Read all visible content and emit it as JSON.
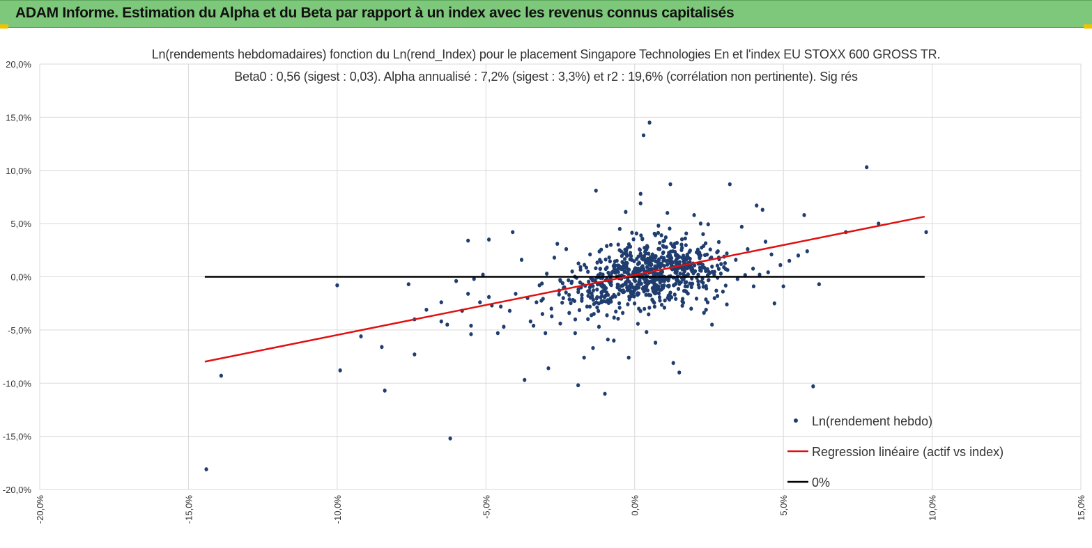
{
  "banner": {
    "title": "ADAM Informe. Estimation du Alpha et du Beta par rapport à un index avec les revenus connus capitalisés",
    "background": "#7dc87a",
    "accent": "#f2c200"
  },
  "chart_data": {
    "type": "scatter",
    "title": "Ln(rendements hebdomadaires) fonction du Ln(rend_Index) pour le placement Singapore Technologies En et l'index EU STOXX 600 GROSS TR.",
    "subtitle": "Beta0 : 0,56 (sigest : 0,03). Alpha annualisé : 7,2% (sigest : 3,3%) et r2 : 19,6% (corrélation non pertinente). Sig rés",
    "xlabel": "",
    "ylabel": "",
    "xlim": [
      -0.2,
      0.15
    ],
    "ylim": [
      -0.2,
      0.2
    ],
    "x_ticks": [
      -0.2,
      -0.15,
      -0.1,
      -0.05,
      0.0,
      0.05,
      0.1,
      0.15
    ],
    "x_tick_labels": [
      "-20,0%",
      "-15,0%",
      "-10,0%",
      "-5,0%",
      "0,0%",
      "5,0%",
      "10,0%",
      "15,0%"
    ],
    "y_ticks": [
      0.2,
      0.15,
      0.1,
      0.05,
      0.0,
      -0.05,
      -0.1,
      -0.15,
      -0.2
    ],
    "y_tick_labels": [
      "20,0%",
      "15,0%",
      "10,0%",
      "5,0%",
      "0,0%",
      "-5,0%",
      "-10,0%",
      "-15,0%",
      "-20,0%"
    ],
    "grid": true,
    "legend_position": "bottom-right",
    "colors": {
      "points": "#1f3d6e",
      "regression": "#e01010",
      "zero": "#000000",
      "grid": "#d9d9d9"
    },
    "series": [
      {
        "name": "Ln(rendement hebdo)",
        "kind": "scatter",
        "points": [
          [
            -0.144,
            -0.181
          ],
          [
            -0.139,
            -0.093
          ],
          [
            -0.1,
            -0.008
          ],
          [
            -0.099,
            -0.088
          ],
          [
            -0.092,
            -0.056
          ],
          [
            -0.085,
            -0.066
          ],
          [
            -0.084,
            -0.107
          ],
          [
            -0.076,
            -0.007
          ],
          [
            -0.074,
            -0.073
          ],
          [
            -0.074,
            -0.04
          ],
          [
            -0.07,
            -0.031
          ],
          [
            -0.065,
            -0.024
          ],
          [
            -0.065,
            -0.042
          ],
          [
            -0.063,
            -0.045
          ],
          [
            -0.062,
            -0.152
          ],
          [
            -0.06,
            -0.004
          ],
          [
            -0.058,
            -0.032
          ],
          [
            -0.056,
            -0.016
          ],
          [
            -0.055,
            -0.054
          ],
          [
            -0.055,
            -0.046
          ],
          [
            -0.054,
            -0.002
          ],
          [
            -0.052,
            -0.024
          ],
          [
            -0.051,
            0.002
          ],
          [
            -0.049,
            -0.019
          ],
          [
            -0.048,
            -0.027
          ],
          [
            -0.046,
            -0.053
          ],
          [
            -0.045,
            -0.028
          ],
          [
            -0.044,
            -0.047
          ],
          [
            -0.042,
            -0.032
          ],
          [
            -0.04,
            -0.016
          ],
          [
            -0.056,
            0.034
          ],
          [
            -0.049,
            0.035
          ],
          [
            -0.041,
            0.042
          ],
          [
            -0.038,
            0.016
          ],
          [
            -0.037,
            -0.097
          ],
          [
            -0.036,
            -0.02
          ],
          [
            -0.035,
            -0.042
          ],
          [
            -0.034,
            -0.046
          ],
          [
            -0.033,
            -0.024
          ],
          [
            -0.032,
            -0.008
          ],
          [
            -0.031,
            -0.035
          ],
          [
            -0.03,
            -0.053
          ],
          [
            -0.029,
            -0.086
          ],
          [
            -0.028,
            -0.03
          ],
          [
            -0.027,
            0.018
          ],
          [
            -0.026,
            0.031
          ],
          [
            -0.025,
            -0.044
          ],
          [
            -0.024,
            -0.02
          ],
          [
            -0.023,
            0.026
          ],
          [
            -0.022,
            -0.034
          ],
          [
            -0.021,
            0.005
          ],
          [
            -0.02,
            -0.053
          ],
          [
            -0.019,
            -0.102
          ],
          [
            -0.018,
            -0.01
          ],
          [
            -0.017,
            -0.076
          ],
          [
            -0.016,
            -0.028
          ],
          [
            -0.015,
            0.021
          ],
          [
            -0.014,
            -0.067
          ],
          [
            -0.013,
            0.081
          ],
          [
            -0.012,
            -0.047
          ],
          [
            -0.011,
            -0.018
          ],
          [
            -0.01,
            -0.11
          ],
          [
            -0.009,
            -0.059
          ],
          [
            -0.008,
            0.03
          ],
          [
            -0.007,
            -0.06
          ],
          [
            -0.006,
            0.006
          ],
          [
            -0.005,
            0.045
          ],
          [
            -0.004,
            -0.034
          ],
          [
            -0.003,
            0.061
          ],
          [
            -0.002,
            -0.076
          ],
          [
            -0.001,
            0.016
          ],
          [
            0.0,
            0.007
          ],
          [
            0.001,
            -0.017
          ],
          [
            0.002,
            0.069
          ],
          [
            0.002,
            0.078
          ],
          [
            0.003,
            0.133
          ],
          [
            0.004,
            -0.052
          ],
          [
            0.005,
            0.145
          ],
          [
            0.006,
            0.021
          ],
          [
            0.007,
            -0.062
          ],
          [
            0.008,
            0.048
          ],
          [
            0.009,
            0.039
          ],
          [
            0.01,
            -0.029
          ],
          [
            0.011,
            0.06
          ],
          [
            0.012,
            0.087
          ],
          [
            0.013,
            -0.081
          ],
          [
            0.014,
            0.012
          ],
          [
            0.015,
            -0.09
          ],
          [
            0.016,
            -0.023
          ],
          [
            0.017,
            0.036
          ],
          [
            0.018,
            0.018
          ],
          [
            0.019,
            -0.03
          ],
          [
            0.02,
            0.058
          ],
          [
            0.022,
            0.006
          ],
          [
            0.024,
            -0.031
          ],
          [
            0.026,
            -0.045
          ],
          [
            0.028,
            0.024
          ],
          [
            0.03,
            0.009
          ],
          [
            0.031,
            -0.026
          ],
          [
            0.032,
            0.087
          ],
          [
            0.034,
            0.016
          ],
          [
            0.036,
            0.047
          ],
          [
            0.038,
            0.026
          ],
          [
            0.04,
            -0.009
          ],
          [
            0.041,
            0.067
          ],
          [
            0.042,
            0.002
          ],
          [
            0.043,
            0.063
          ],
          [
            0.044,
            0.033
          ],
          [
            0.046,
            0.021
          ],
          [
            0.047,
            -0.025
          ],
          [
            0.049,
            0.011
          ],
          [
            0.05,
            -0.009
          ],
          [
            0.052,
            0.015
          ],
          [
            0.055,
            0.02
          ],
          [
            0.057,
            0.058
          ],
          [
            0.058,
            0.024
          ],
          [
            0.06,
            -0.103
          ],
          [
            0.062,
            -0.007
          ],
          [
            0.071,
            0.042
          ],
          [
            0.078,
            0.103
          ],
          [
            0.082,
            0.05
          ],
          [
            0.098,
            0.042
          ]
        ],
        "dense_cluster": {
          "center": [
            0.004,
            0.002
          ],
          "spread": [
            0.022,
            0.025
          ],
          "count": 720
        }
      },
      {
        "name": "Regression linéaire (actif vs index)",
        "kind": "line",
        "points": [
          [
            -0.1445,
            -0.0798
          ],
          [
            0.0975,
            0.0566
          ]
        ]
      },
      {
        "name": "0%",
        "kind": "line",
        "points": [
          [
            -0.1445,
            0.0
          ],
          [
            0.0975,
            0.0
          ]
        ]
      }
    ]
  }
}
